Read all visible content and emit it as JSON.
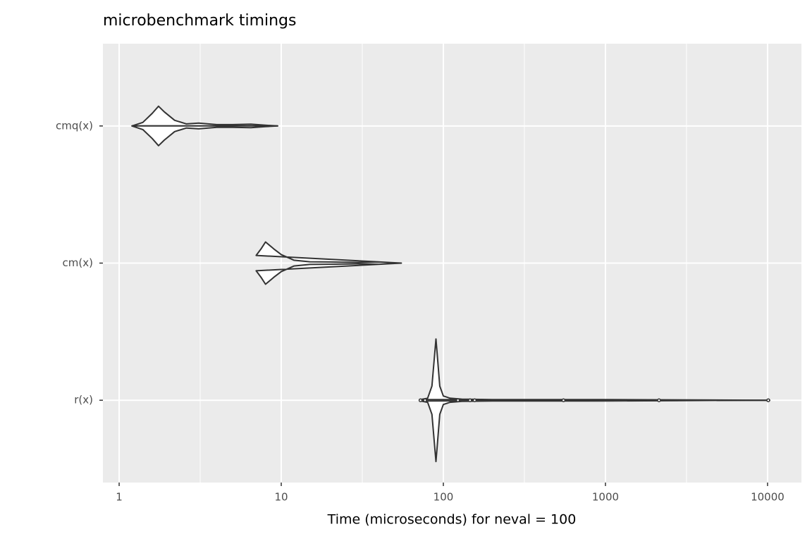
{
  "chart_data": {
    "type": "violin",
    "title": "microbenchmark timings",
    "x_label": "Time (microseconds) for neval = 100",
    "log_x": true,
    "xlim": [
      0.794,
      16180
    ],
    "xticks": [
      1,
      10,
      100,
      1000,
      10000
    ],
    "minor_xticks": [
      3.162,
      31.62,
      316.2,
      3162
    ],
    "categories": [
      "cmq(x)",
      "cm(x)",
      "r(x)"
    ],
    "grid": true,
    "fill": "#ffffff",
    "line_color": "#333333",
    "series": [
      {
        "x": [
          1.2,
          1.4,
          1.6,
          1.75,
          1.9,
          2.2,
          2.6,
          3.1,
          4,
          5,
          6.5,
          8,
          9.5
        ],
        "density": [
          0,
          0.026,
          0.092,
          0.144,
          0.103,
          0.041,
          0.015,
          0.021,
          0.01,
          0.01,
          0.013,
          0.005,
          0
        ],
        "points": []
      },
      {
        "x": [
          7,
          7.5,
          8,
          9,
          10,
          12,
          15,
          20,
          30,
          40,
          55
        ],
        "density": [
          0.056,
          0.103,
          0.154,
          0.103,
          0.062,
          0.021,
          0.01,
          0.008,
          0.005,
          0.008,
          0
        ],
        "points": []
      },
      {
        "x": [
          72,
          80,
          85,
          88,
          90,
          92,
          95,
          100,
          110,
          130,
          200,
          1000,
          10300
        ],
        "density": [
          0.005,
          0.015,
          0.103,
          0.308,
          0.447,
          0.308,
          0.103,
          0.031,
          0.015,
          0.008,
          0.005,
          0.005,
          0
        ],
        "points": [
          72.3,
          77.1,
          123,
          146,
          156,
          551,
          2140,
          10100
        ]
      }
    ]
  }
}
